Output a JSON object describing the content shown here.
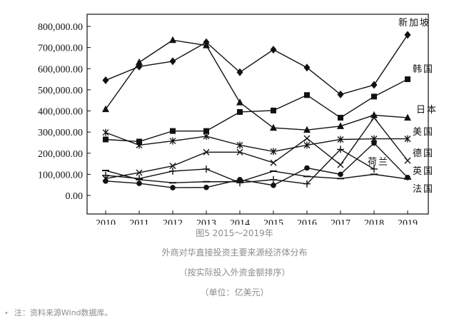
{
  "chart_data": {
    "type": "line",
    "categories": [
      "2010",
      "2011",
      "2012",
      "2013",
      "2014",
      "2015",
      "2016",
      "2017",
      "2018",
      "2019"
    ],
    "y_ticks": [
      "0.00",
      "100,000.00",
      "200,000.00",
      "300,000.00",
      "400,000.00",
      "500,000.00",
      "600,000.00",
      "700,000.00",
      "800,000.00"
    ],
    "ylim": [
      0,
      800000
    ],
    "grid": false,
    "series": [
      {
        "name": "新加坡",
        "marker": "diamond",
        "values": [
          545000,
          610000,
          635000,
          725000,
          583000,
          690000,
          605000,
          478000,
          523000,
          760000
        ]
      },
      {
        "name": "韩国",
        "marker": "square",
        "values": [
          265000,
          255000,
          305000,
          305000,
          395000,
          402000,
          475000,
          368000,
          468000,
          550000
        ]
      },
      {
        "name": "日本",
        "marker": "triangle",
        "values": [
          408000,
          630000,
          735000,
          710000,
          440000,
          320000,
          310000,
          328000,
          380000,
          368000
        ]
      },
      {
        "name": "美国",
        "marker": "star",
        "values": [
          298000,
          238000,
          258000,
          280000,
          238000,
          208000,
          238000,
          265000,
          268000,
          268000
        ]
      },
      {
        "name": "德国",
        "marker": "x",
        "values": [
          80000,
          108000,
          140000,
          205000,
          205000,
          155000,
          270000,
          145000,
          368000,
          165000
        ]
      },
      {
        "name": "荷兰",
        "marker": "plus",
        "values": [
          95000,
          80000,
          115000,
          125000,
          60000,
          75000,
          55000,
          218000,
          125000,
          null
        ]
      },
      {
        "name": "英国",
        "marker": "circle",
        "values": [
          68000,
          57000,
          37000,
          38000,
          75000,
          48000,
          130000,
          100000,
          248000,
          85000
        ]
      },
      {
        "name": "法国",
        "marker": "dash",
        "values": [
          118000,
          75000,
          60000,
          65000,
          65000,
          115000,
          90000,
          80000,
          100000,
          78000
        ]
      }
    ]
  },
  "caption": {
    "figure": "图5 2015～2019年",
    "title": "外商对华直接投资主要来源经济体分布",
    "subtitle": "（按实际投入外资金额排序）",
    "unit": "（单位：亿美元）"
  },
  "note": {
    "bullet": "•",
    "text": "注：资料来源Wind数据库。"
  }
}
